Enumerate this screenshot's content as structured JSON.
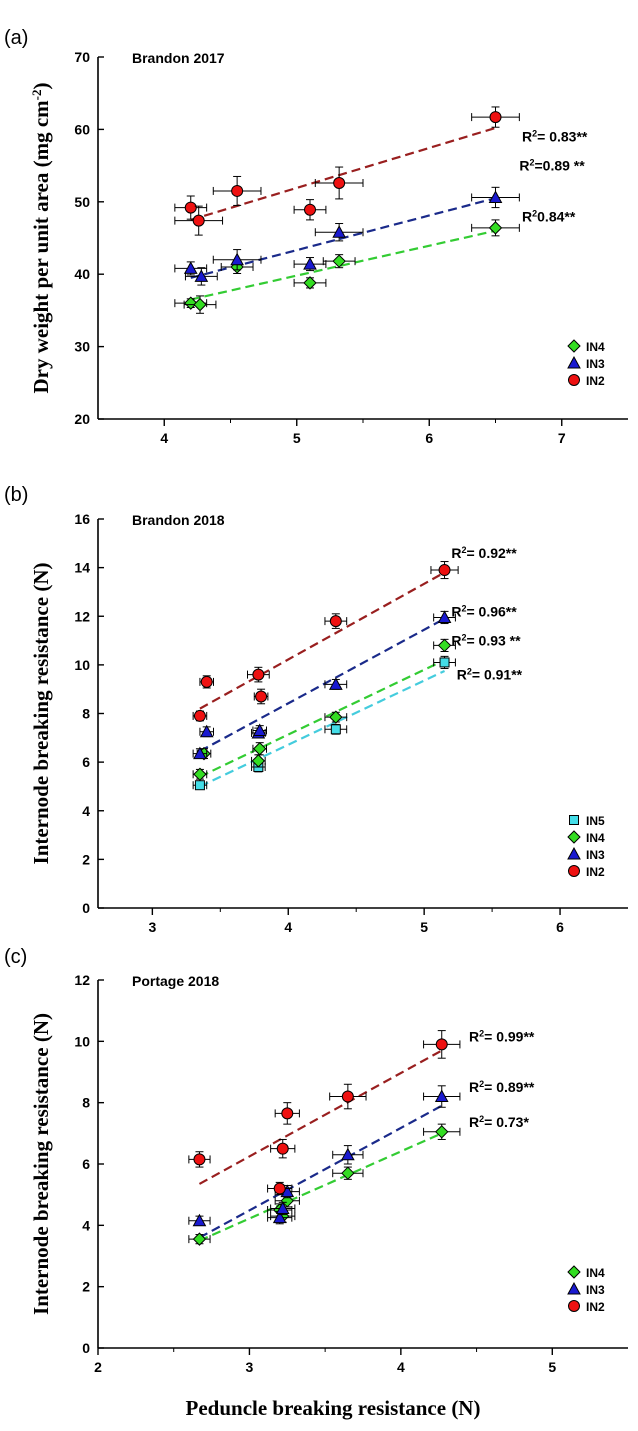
{
  "chart_data": [
    {
      "type": "scatter",
      "panel_label": "(a)",
      "title": "Brandon 2017",
      "ylabel": "Dry weight per unit area (mg cm",
      "ylabel_sup": "-2",
      "ylabel_end": ")",
      "xlim": [
        3.5,
        7.5
      ],
      "ylim": [
        20,
        70
      ],
      "xticks": [
        "4",
        "5",
        "6",
        "7"
      ],
      "yticks": [
        "20",
        "30",
        "40",
        "50",
        "60",
        "70"
      ],
      "legend_position": "bottom-right",
      "series": [
        {
          "name": "IN4",
          "marker": "diamond",
          "color": "#33dd22",
          "line_color": "#33cc33",
          "x": [
            4.2,
            4.27,
            4.55,
            5.1,
            5.32,
            6.5
          ],
          "y": [
            36.0,
            35.8,
            41.0,
            38.8,
            41.8,
            46.4
          ],
          "xerr": [
            0.12,
            0.12,
            0.12,
            0.12,
            0.12,
            0.18
          ],
          "yerr": [
            0.6,
            1.2,
            0.9,
            0.7,
            0.9,
            1.1
          ],
          "fit": [
            [
              4.2,
              36.5
            ],
            [
              6.5,
              46.0
            ]
          ],
          "r2_label": "0.84**",
          "r2_anchor": [
            6.7,
            47.3
          ]
        },
        {
          "name": "IN3",
          "marker": "triangle",
          "color": "#1a1ad0",
          "line_color": "#1a2a8a",
          "x": [
            4.2,
            4.28,
            4.55,
            5.1,
            5.32,
            6.5
          ],
          "y": [
            40.8,
            39.7,
            42.0,
            41.4,
            45.8,
            50.6
          ],
          "xerr": [
            0.12,
            0.12,
            0.18,
            0.12,
            0.18,
            0.18
          ],
          "yerr": [
            0.9,
            1.2,
            1.4,
            0.9,
            1.2,
            1.4
          ],
          "fit": [
            [
              4.2,
              39.5
            ],
            [
              6.5,
              50.5
            ]
          ],
          "r2_label": "=0.89 **",
          "r2_anchor": [
            6.68,
            54.3
          ]
        },
        {
          "name": "IN2",
          "marker": "circle",
          "color": "#ee1111",
          "line_color": "#991f1f",
          "x": [
            4.2,
            4.26,
            4.55,
            5.1,
            5.32,
            6.5
          ],
          "y": [
            49.2,
            47.4,
            51.5,
            48.9,
            52.6,
            61.7
          ],
          "xerr": [
            0.12,
            0.18,
            0.18,
            0.12,
            0.18,
            0.18
          ],
          "yerr": [
            1.6,
            2.0,
            2.0,
            1.4,
            2.2,
            1.4
          ],
          "fit": [
            [
              4.2,
              47.5
            ],
            [
              6.5,
              60.2
            ]
          ],
          "r2_label": "= 0.83**",
          "r2_anchor": [
            6.7,
            58.3
          ]
        }
      ]
    },
    {
      "type": "scatter",
      "panel_label": "(b)",
      "title": "Brandon 2018",
      "ylabel": "Internode breaking resistance (N)",
      "xlim": [
        2.6,
        6.5
      ],
      "ylim": [
        0,
        16
      ],
      "xticks": [
        "3",
        "4",
        "5",
        "6"
      ],
      "yticks": [
        "0",
        "2",
        "4",
        "6",
        "8",
        "10",
        "12",
        "14",
        "16"
      ],
      "legend_position": "bottom-right",
      "series": [
        {
          "name": "IN5",
          "marker": "square",
          "color": "#44dde8",
          "line_color": "#44ccdd",
          "x": [
            3.35,
            3.78,
            4.35,
            5.15
          ],
          "y": [
            5.05,
            5.8,
            7.35,
            10.1
          ],
          "xerr": [
            0.05,
            0.05,
            0.08,
            0.08
          ],
          "yerr": [
            0.15,
            0.2,
            0.2,
            0.25
          ],
          "fit": [
            [
              3.35,
              5.0
            ],
            [
              5.15,
              9.75
            ]
          ],
          "r2_label": "= 0.91**",
          "r2_anchor": [
            5.24,
            9.4
          ]
        },
        {
          "name": "IN4",
          "marker": "diamond",
          "color": "#33dd22",
          "line_color": "#33cc33",
          "x": [
            3.35,
            3.38,
            3.78,
            3.79,
            4.35,
            5.15
          ],
          "y": [
            5.5,
            6.35,
            6.05,
            6.55,
            7.85,
            10.8
          ],
          "xerr": [
            0.05,
            0.05,
            0.05,
            0.05,
            0.08,
            0.08
          ],
          "yerr": [
            0.2,
            0.2,
            0.25,
            0.25,
            0.2,
            0.25
          ],
          "fit": [
            [
              3.35,
              5.4
            ],
            [
              5.15,
              10.2
            ]
          ],
          "r2_label": "= 0.93 **",
          "r2_anchor": [
            5.2,
            10.8
          ]
        },
        {
          "name": "IN3",
          "marker": "triangle",
          "color": "#1a1ad0",
          "line_color": "#1a2a8a",
          "x": [
            3.35,
            3.4,
            3.78,
            3.79,
            4.35,
            5.15
          ],
          "y": [
            6.35,
            7.25,
            7.2,
            7.3,
            9.2,
            11.95
          ],
          "xerr": [
            0.05,
            0.05,
            0.05,
            0.05,
            0.08,
            0.08
          ],
          "yerr": [
            0.2,
            0.2,
            0.2,
            0.2,
            0.2,
            0.25
          ],
          "fit": [
            [
              3.35,
              6.45
            ],
            [
              5.15,
              11.9
            ]
          ],
          "r2_label": "= 0.96**",
          "r2_anchor": [
            5.2,
            12.0
          ]
        },
        {
          "name": "IN2",
          "marker": "circle",
          "color": "#ee1111",
          "line_color": "#991f1f",
          "x": [
            3.35,
            3.4,
            3.78,
            3.8,
            4.35,
            5.15
          ],
          "y": [
            7.9,
            9.3,
            9.6,
            8.7,
            11.8,
            13.9
          ],
          "xerr": [
            0.05,
            0.05,
            0.08,
            0.05,
            0.08,
            0.1
          ],
          "yerr": [
            0.2,
            0.25,
            0.3,
            0.3,
            0.3,
            0.35
          ],
          "fit": [
            [
              3.35,
              8.2
            ],
            [
              5.15,
              13.8
            ]
          ],
          "r2_label": "= 0.92**",
          "r2_anchor": [
            5.2,
            14.4
          ]
        }
      ]
    },
    {
      "type": "scatter",
      "panel_label": "(c)",
      "title": "Portage 2018",
      "ylabel": "Internode breaking resistance (N)",
      "xlabel": "Peduncle breaking resistance (N)",
      "xlim": [
        2.0,
        5.5
      ],
      "ylim": [
        0,
        12
      ],
      "xticks": [
        "2",
        "3",
        "4",
        "5"
      ],
      "yticks": [
        "0",
        "2",
        "4",
        "6",
        "8",
        "10",
        "12"
      ],
      "legend_position": "bottom-right",
      "series": [
        {
          "name": "IN4",
          "marker": "diamond",
          "color": "#33dd22",
          "line_color": "#33cc33",
          "x": [
            2.67,
            3.2,
            3.22,
            3.25,
            3.65,
            4.27
          ],
          "y": [
            3.55,
            4.5,
            4.3,
            4.8,
            5.7,
            7.05
          ],
          "xerr": [
            0.07,
            0.08,
            0.08,
            0.08,
            0.1,
            0.12
          ],
          "yerr": [
            0.15,
            0.2,
            0.2,
            0.2,
            0.2,
            0.25
          ],
          "fit": [
            [
              2.67,
              3.5
            ],
            [
              4.27,
              7.0
            ]
          ],
          "r2_label": "= 0.73*",
          "r2_anchor": [
            4.45,
            7.2
          ]
        },
        {
          "name": "IN3",
          "marker": "triangle",
          "color": "#1a1ad0",
          "line_color": "#1a2a8a",
          "x": [
            2.67,
            3.2,
            3.22,
            3.25,
            3.65,
            4.27
          ],
          "y": [
            4.15,
            4.25,
            4.55,
            5.1,
            6.3,
            8.2
          ],
          "xerr": [
            0.07,
            0.08,
            0.08,
            0.08,
            0.1,
            0.12
          ],
          "yerr": [
            0.15,
            0.2,
            0.2,
            0.2,
            0.3,
            0.35
          ],
          "fit": [
            [
              2.67,
              3.6
            ],
            [
              4.27,
              7.9
            ]
          ],
          "r2_label": "= 0.89**",
          "r2_anchor": [
            4.45,
            8.35
          ]
        },
        {
          "name": "IN2",
          "marker": "circle",
          "color": "#ee1111",
          "line_color": "#991f1f",
          "x": [
            2.67,
            3.2,
            3.22,
            3.25,
            3.65,
            4.27
          ],
          "y": [
            6.15,
            5.2,
            6.5,
            7.65,
            8.2,
            9.9
          ],
          "xerr": [
            0.07,
            0.08,
            0.08,
            0.08,
            0.12,
            0.12
          ],
          "yerr": [
            0.25,
            0.2,
            0.3,
            0.35,
            0.4,
            0.45
          ],
          "fit": [
            [
              2.67,
              5.35
            ],
            [
              4.27,
              9.7
            ]
          ],
          "r2_label": "= 0.99**",
          "r2_anchor": [
            4.45,
            10.0
          ]
        }
      ]
    }
  ]
}
